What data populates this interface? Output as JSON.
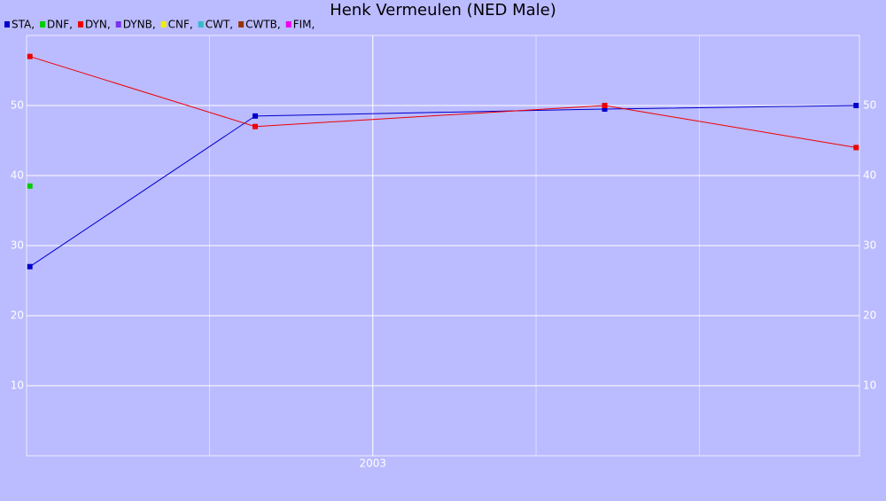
{
  "chart_data": {
    "type": "line",
    "title": "Henk Vermeulen (NED Male)",
    "xlim": [
      2001.94,
      2004.49
    ],
    "xticks": [
      {
        "value": 2003,
        "label": "2003"
      }
    ],
    "xgrid": [
      2002.5,
      2003.5,
      2004
    ],
    "ylim": [
      0,
      60
    ],
    "yticks": [
      10,
      20,
      30,
      40,
      50
    ],
    "grid": true,
    "series": [
      {
        "name": "STA,",
        "color": "#0000cc",
        "x": [
          2001.95,
          2002.64,
          2003.71,
          2004.48
        ],
        "values": [
          27,
          48.5,
          49.5,
          50
        ]
      },
      {
        "name": "DNF,",
        "color": "#00cc00",
        "x": [
          2001.95
        ],
        "values": [
          38.5
        ]
      },
      {
        "name": "DYN,",
        "color": "#ee0000",
        "x": [
          2001.95,
          2002.64,
          2003.71,
          2004.48
        ],
        "values": [
          57,
          47,
          50,
          44
        ]
      },
      {
        "name": "DYNB,",
        "color": "#7733ee",
        "x": [],
        "values": []
      },
      {
        "name": "CNF,",
        "color": "#eeee00",
        "x": [],
        "values": []
      },
      {
        "name": "CWT,",
        "color": "#33bbcc",
        "x": [],
        "values": []
      },
      {
        "name": "CWTB,",
        "color": "#993300",
        "x": [],
        "values": []
      },
      {
        "name": "FIM,",
        "color": "#ee00ee",
        "x": [],
        "values": []
      }
    ]
  }
}
